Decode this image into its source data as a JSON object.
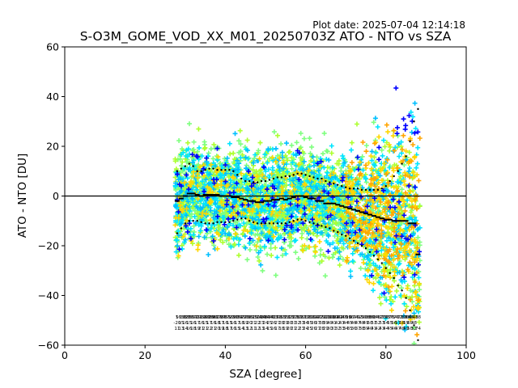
{
  "header": {
    "plot_date": "Plot date: 2025-07-04 12:14:18",
    "title": "S-O3M_GOME_VOD_XX_M01_20250703Z ATO - NTO vs SZA"
  },
  "chart_data": {
    "type": "scatter",
    "xlabel": "SZA [degree]",
    "ylabel": "ATO - NTO [DU]",
    "xlim": [
      0,
      100
    ],
    "ylim": [
      -60,
      60
    ],
    "xticks": [
      "0",
      "20",
      "40",
      "60",
      "80",
      "100"
    ],
    "yticks": [
      "−60",
      "−40",
      "−20",
      "0",
      "20",
      "40",
      "60"
    ],
    "grid": false,
    "legend": "none",
    "zero_line": 0,
    "scatter_cloud": {
      "marker": "+",
      "x_range": [
        27.5,
        88.5
      ],
      "colors": [
        "#7fff7f",
        "#adff2f",
        "#00e5ff",
        "#00bfff",
        "#ffd700",
        "#ffa500",
        "#0000ff"
      ]
    },
    "sza_bins": [
      28,
      29,
      30,
      31,
      32,
      33,
      34,
      35,
      36,
      37,
      38,
      39,
      40,
      41,
      42,
      43,
      44,
      45,
      46,
      47,
      48,
      49,
      50,
      51,
      52,
      53,
      54,
      55,
      56,
      57,
      58,
      59,
      60,
      61,
      62,
      63,
      64,
      65,
      66,
      67,
      68,
      69,
      70,
      71,
      72,
      73,
      74,
      75,
      76,
      77,
      78,
      79,
      80,
      81,
      82,
      83,
      84,
      85,
      86,
      87,
      88
    ],
    "series": [
      {
        "role": "mean",
        "marker": "_",
        "y": [
          -2,
          -1,
          0,
          1,
          1,
          0.5,
          0,
          0.5,
          0.5,
          0.5,
          0.5,
          0,
          0,
          0,
          -0.5,
          -0.5,
          -1,
          -1.5,
          -2,
          -2,
          -2.5,
          -2.5,
          -2,
          -2,
          -1.5,
          -1.5,
          -1,
          -1.5,
          -1,
          -0.5,
          0,
          0,
          -0.5,
          -1,
          -1,
          -2,
          -2,
          -3,
          -3,
          -3,
          -3.5,
          -4,
          -4.5,
          -5,
          -5.5,
          -6,
          -6.5,
          -7,
          -7.5,
          -8,
          -8.5,
          -9,
          -9.5,
          -9.5,
          -10,
          -10,
          -10,
          -10,
          -11,
          -11,
          -23.5
        ]
      },
      {
        "role": "mean_plus_std",
        "marker": ".",
        "y": [
          10,
          11,
          12,
          13,
          12,
          10,
          10,
          10.5,
          11,
          11,
          10.5,
          10.5,
          10.5,
          10.5,
          10,
          8.5,
          7,
          6,
          6,
          5.5,
          5.5,
          6,
          6,
          6.5,
          7,
          7.5,
          7.5,
          8,
          8,
          8.5,
          9,
          9,
          8.5,
          8,
          7.5,
          7,
          7,
          6,
          5.5,
          5,
          4.5,
          4,
          3.5,
          3,
          3,
          3,
          2.5,
          2.5,
          2.5,
          2.5,
          2.5,
          3,
          4,
          6,
          8,
          10,
          13,
          16,
          22,
          30,
          35
        ]
      },
      {
        "role": "mean_minus_std",
        "marker": ".",
        "y": [
          -15,
          -13,
          -11,
          -10,
          -10,
          -10,
          -10.5,
          -11,
          -11,
          -11,
          -10.5,
          -10.5,
          -10.5,
          -10.5,
          -10,
          -9.5,
          -9,
          -9,
          -10,
          -10.5,
          -11,
          -11,
          -11,
          -11,
          -11,
          -11,
          -11,
          -11,
          -10.5,
          -10,
          -9.5,
          -9.5,
          -10,
          -10.5,
          -11,
          -11.5,
          -12,
          -12.5,
          -13,
          -14,
          -14.5,
          -15.5,
          -16,
          -17,
          -18,
          -19,
          -20,
          -21,
          -22.5,
          -24,
          -25.5,
          -27,
          -29,
          -31,
          -33,
          -36,
          -38,
          -41,
          -46,
          -52,
          -58
        ]
      }
    ],
    "annotations": {
      "note": "per-bin count labels printed in tiny font near y = -52",
      "rows": [
        [
          "5",
          "1658",
          "1823",
          "1855",
          "1870",
          "1916",
          "1938",
          "1907",
          "1889",
          "1867",
          "1820",
          "1786",
          "1755",
          "1723",
          "1690",
          "1654",
          "1622",
          "1590",
          "1561",
          "1537",
          "1510",
          "1488",
          "1463",
          "1440",
          "1417",
          "1396",
          "1372",
          "1350",
          "1327",
          "1305",
          "1282",
          "1261",
          "1238",
          "1216",
          "1194",
          "1172",
          "1150",
          "1128",
          "1106",
          "1084",
          "1062",
          "1040",
          "1018",
          "996",
          "974",
          "952",
          "930",
          "908",
          "886",
          "864",
          "842",
          "820",
          "798",
          "776",
          "754",
          "732",
          "710",
          "688",
          "666",
          "648",
          "38"
        ],
        [
          "-20",
          "15",
          "16",
          "15",
          "16",
          "17",
          "16",
          "15",
          "17",
          "16",
          "18",
          "17",
          "16",
          "15",
          "16",
          "17",
          "18",
          "19",
          "20",
          "21",
          "22",
          "23",
          "24",
          "25",
          "26",
          "27",
          "28",
          "29",
          "30",
          "31",
          "32",
          "33",
          "34",
          "35",
          "36",
          "37",
          "38",
          "39",
          "40",
          "41",
          "42",
          "43",
          "44",
          "45",
          "46",
          "47",
          "48",
          "49",
          "50",
          "51",
          "52",
          "53",
          "54",
          "55",
          "56",
          "57",
          "58",
          "59",
          "60",
          "48"
        ],
        [
          "11",
          "13",
          "14",
          "16",
          "18",
          "19",
          "21",
          "21",
          "22",
          "21",
          "20",
          "19",
          "18",
          "17",
          "16",
          "15",
          "14",
          "13",
          "12",
          "11",
          "12",
          "13",
          "14",
          "15",
          "16",
          "17",
          "18",
          "19",
          "20",
          "21",
          "22",
          "23",
          "24",
          "25",
          "26",
          "27",
          "28",
          "29",
          "30",
          "31",
          "32",
          "33",
          "34",
          "35",
          "36",
          "37",
          "38",
          "39",
          "40",
          "41",
          "42",
          "43",
          "44",
          "45",
          "46",
          "47",
          "48",
          "49",
          "50",
          "52",
          "74"
        ]
      ]
    }
  }
}
